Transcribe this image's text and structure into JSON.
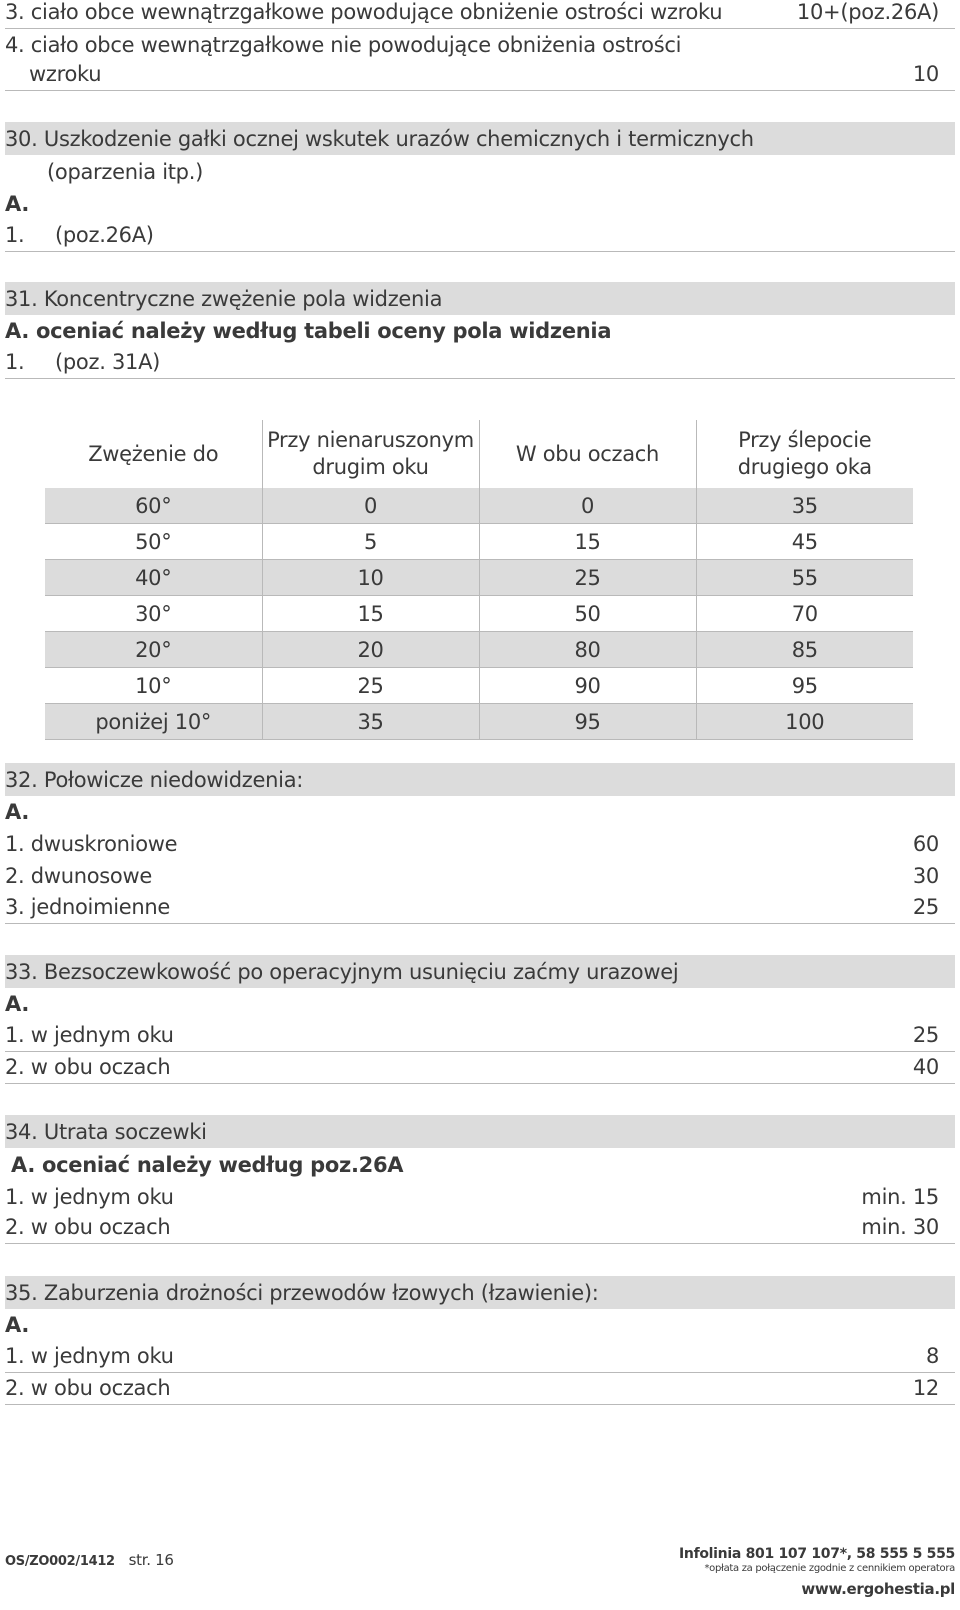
{
  "top_items": [
    {
      "label": "3. ciało obce wewnątrzgałkowe powodujące obniżenie ostrości wzroku",
      "value": "10+(poz.26A)"
    },
    {
      "label": "4. ciało obce wewnątrzgałkowe nie powodujące obniżenia ostrości",
      "label2": "wzroku",
      "value": "10"
    }
  ],
  "s30": {
    "title": "30.  Uszkodzenie gałki ocznej wskutek urazów chemicznych i termicznych",
    "title2": "(oparzenia itp.)",
    "a": "A.",
    "item1_num": "1.",
    "item1_text": "(poz.26A)"
  },
  "s31": {
    "title": "31. Koncentryczne zwężenie pola widzenia",
    "a": "A. oceniać należy według tabeli oceny pola widzenia",
    "item1_num": "1.",
    "item1_text": "(poz. 31A)"
  },
  "table": {
    "headers": [
      "Zwężenie do",
      "Przy nienaruszonym drugim oku",
      "W obu oczach",
      "Przy ślepocie drugiego oka"
    ],
    "rows": [
      [
        "60°",
        "0",
        "0",
        "35"
      ],
      [
        "50°",
        "5",
        "15",
        "45"
      ],
      [
        "40°",
        "10",
        "25",
        "55"
      ],
      [
        "30°",
        "15",
        "50",
        "70"
      ],
      [
        "20°",
        "20",
        "80",
        "85"
      ],
      [
        "10°",
        "25",
        "90",
        "95"
      ],
      [
        "poniżej 10°",
        "35",
        "95",
        "100"
      ]
    ]
  },
  "s32": {
    "title": "32.  Połowicze niedowidzenia:",
    "a": "A.",
    "items": [
      {
        "label": "1. dwuskroniowe",
        "value": "60"
      },
      {
        "label": "2. dwunosowe",
        "value": "30"
      },
      {
        "label": "3. jednoimienne",
        "value": "25"
      }
    ]
  },
  "s33": {
    "title": "33.  Bezsoczewkowość po operacyjnym usunięciu zaćmy urazowej",
    "a": "A.",
    "items": [
      {
        "label": "1. w jednym oku",
        "value": "25"
      },
      {
        "label": "2. w obu oczach",
        "value": "40"
      }
    ]
  },
  "s34": {
    "title": "34. Utrata soczewki",
    "a": "A. oceniać należy według poz.26A",
    "items": [
      {
        "label": "1. w jednym oku",
        "value": "min. 15"
      },
      {
        "label": "2. w obu oczach",
        "value": "min. 30"
      }
    ]
  },
  "s35": {
    "title": "35.  Zaburzenia drożności przewodów łzowych (łzawienie):",
    "a": "A.",
    "items": [
      {
        "label": "1. w jednym oku",
        "value": "8"
      },
      {
        "label": "2. w obu oczach",
        "value": "12"
      }
    ]
  },
  "footer": {
    "code": "OS/ZO002/1412",
    "page": "str. 16",
    "infolinia": "Infolinia 801 107 107*, 58 555 5 555",
    "note": "*opłata za połączenie zgodnie z cennikiem operatora",
    "website": "www.ergohestia.pl"
  }
}
